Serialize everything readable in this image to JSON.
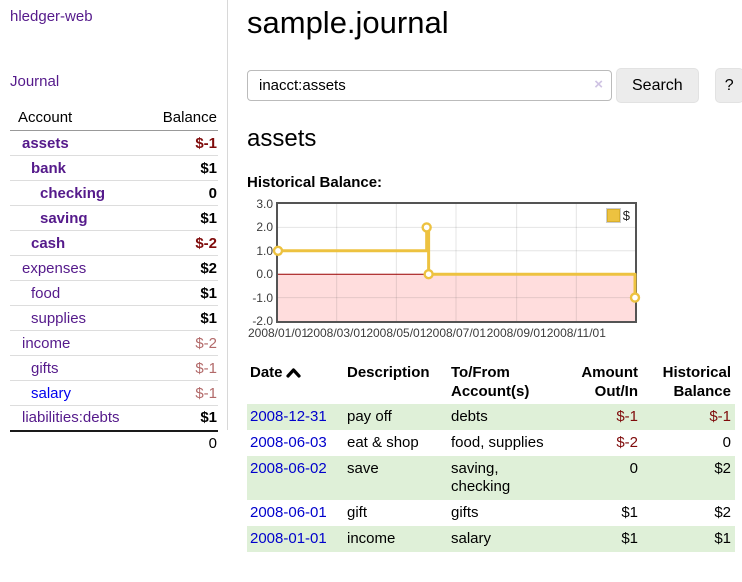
{
  "app": {
    "title": "hledger-web"
  },
  "sidebar": {
    "journal_link": "Journal",
    "accounts": {
      "header_account": "Account",
      "header_balance": "Balance",
      "rows": [
        {
          "account": "assets",
          "balance": "$-1"
        },
        {
          "account": "bank",
          "balance": "$1"
        },
        {
          "account": "checking",
          "balance": "0"
        },
        {
          "account": "saving",
          "balance": "$1"
        },
        {
          "account": "cash",
          "balance": "$-2"
        },
        {
          "account": "expenses",
          "balance": "$2"
        },
        {
          "account": "food",
          "balance": "$1"
        },
        {
          "account": "supplies",
          "balance": "$1"
        },
        {
          "account": "income",
          "balance": "$-2"
        },
        {
          "account": "gifts",
          "balance": "$-1"
        },
        {
          "account": "salary",
          "balance": "$-1"
        },
        {
          "account": "liabilities:debts",
          "balance": "$1"
        }
      ],
      "total": "0"
    }
  },
  "main": {
    "title": "sample.journal",
    "search": {
      "value": "inacct:assets",
      "clear_icon": "×",
      "button": "Search",
      "help_button": "?"
    },
    "account_heading": "assets",
    "chart_heading": "Historical Balance:"
  },
  "chart_data": {
    "type": "line",
    "title": "Historical Balance:",
    "series": [
      {
        "name": "$",
        "color": "#EDC240",
        "step": true,
        "points": [
          {
            "x": "2008-01-01",
            "y": 1
          },
          {
            "x": "2008-06-01",
            "y": 2
          },
          {
            "x": "2008-06-03",
            "y": 0
          },
          {
            "x": "2008-12-31",
            "y": -1
          }
        ]
      }
    ],
    "xlim": [
      "2008-01-01",
      "2008-12-31"
    ],
    "ylim": [
      -2,
      3
    ],
    "x_ticks": [
      "2008/01/01",
      "2008/03/01",
      "2008/05/01",
      "2008/07/01",
      "2008/09/01",
      "2008/11/01"
    ],
    "y_ticks": [
      "3.0",
      "2.0",
      "1.0",
      "0.0",
      "-1.0",
      "-2.0"
    ],
    "legend": {
      "position": "top-right",
      "label": "$"
    },
    "grid": true,
    "negative_region_color": "#ffdddd",
    "zero_line_color": "#990000"
  },
  "transactions": {
    "headers": [
      {
        "line1": "Date",
        "line2": ""
      },
      {
        "line1": "Description",
        "line2": ""
      },
      {
        "line1": "To/From",
        "line2": "Account(s)"
      },
      {
        "line1": "Amount",
        "line2": "Out/In"
      },
      {
        "line1": "Historical",
        "line2": "Balance"
      }
    ],
    "rows": [
      {
        "date": "2008-12-31",
        "description": "pay off",
        "tofrom": "debts",
        "amount": "$-1",
        "historical": "$-1"
      },
      {
        "date": "2008-06-03",
        "description": "eat & shop",
        "tofrom": "food, supplies",
        "amount": "$-2",
        "historical": "0"
      },
      {
        "date": "2008-06-02",
        "description": "save",
        "tofrom": "saving, checking",
        "amount": "0",
        "historical": "$2"
      },
      {
        "date": "2008-06-01",
        "description": "gift",
        "tofrom": "gifts",
        "amount": "$1",
        "historical": "$2"
      },
      {
        "date": "2008-01-01",
        "description": "income",
        "tofrom": "salary",
        "amount": "$1",
        "historical": "$1"
      }
    ]
  },
  "colors": {
    "accent_gold": "#EDC240",
    "link_purple": "#551A8B",
    "link_blue": "#0000EE",
    "negative_dark": "#7f0b0b",
    "negative_dim": "#b26969",
    "row_stripe_green": "#dff0d8",
    "negative_region_pink": "#ffdddd"
  }
}
